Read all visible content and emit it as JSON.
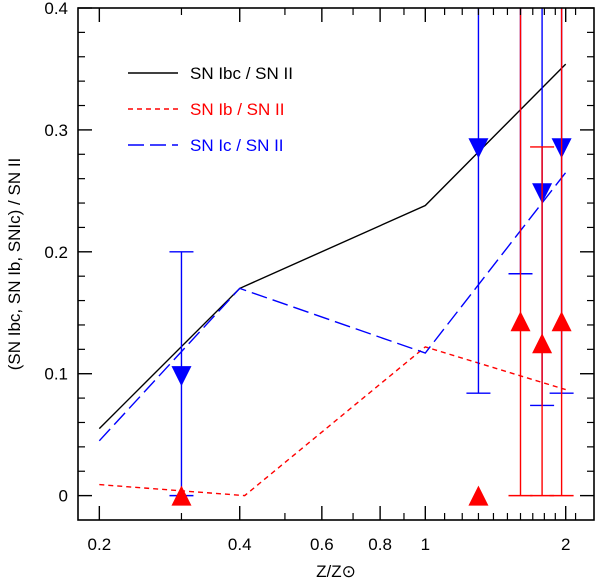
{
  "chart_data": {
    "type": "line",
    "title": "",
    "xlabel": "Z/Z⊙",
    "ylabel": "(SN Ibc, SN Ib, SNIc) / SN II",
    "x_scale": "log",
    "xlim": [
      0.18,
      2.3
    ],
    "ylim": [
      -0.02,
      0.4
    ],
    "x_ticks": [
      {
        "value": 0.2,
        "label": "0.2"
      },
      {
        "value": 0.4,
        "label": "0.4"
      },
      {
        "value": 0.6,
        "label": "0.6"
      },
      {
        "value": 0.8,
        "label": "0.8"
      },
      {
        "value": 1,
        "label": "1"
      },
      {
        "value": 2,
        "label": "2"
      }
    ],
    "y_ticks": [
      {
        "value": 0,
        "label": "0"
      },
      {
        "value": 0.1,
        "label": "0.1"
      },
      {
        "value": 0.2,
        "label": "0.2"
      },
      {
        "value": 0.3,
        "label": "0.3"
      },
      {
        "value": 0.4,
        "label": "0.4"
      }
    ],
    "legend_position": "top-left",
    "series": [
      {
        "name": "SN Ibc / SN II",
        "color": "#000000",
        "style": "solid",
        "x": [
          0.2,
          0.4,
          1.0,
          2.0
        ],
        "y": [
          0.055,
          0.17,
          0.238,
          0.354
        ]
      },
      {
        "name": "SN Ib / SN II",
        "color": "#ff0000",
        "style": "dotted",
        "x": [
          0.2,
          0.41,
          1.0,
          2.0
        ],
        "y": [
          0.009,
          0.0,
          0.122,
          0.087
        ]
      },
      {
        "name": "SN Ic / SN II",
        "color": "#0000ff",
        "style": "dashed",
        "x": [
          0.2,
          0.4,
          1.0,
          2.0
        ],
        "y": [
          0.045,
          0.17,
          0.117,
          0.265
        ]
      }
    ],
    "points": [
      {
        "series": "SN Ic / SN II",
        "marker": "down-triangle",
        "color": "#0000ff",
        "x": 0.3,
        "y": 0.098,
        "lo": 0.0,
        "hi": 0.2
      },
      {
        "series": "SN Ic / SN II",
        "marker": "down-triangle",
        "color": "#0000ff",
        "x": 1.3,
        "y": 0.285,
        "lo": 0.084,
        "hi": 0.4
      },
      {
        "series": "SN Ic / SN II",
        "marker": "down-triangle",
        "color": "#0000ff",
        "x": 1.78,
        "y": 0.248,
        "lo": 0.074,
        "hi": 0.4
      },
      {
        "series": "SN Ic / SN II",
        "marker": "down-triangle",
        "color": "#0000ff",
        "x": 1.96,
        "y": 0.285,
        "lo": 0.084,
        "hi": 0.4
      },
      {
        "series": "SN Ic / SN II",
        "marker": "none",
        "color": "#0000ff",
        "x": 1.6,
        "y": null,
        "lo": 0.182,
        "hi": 0.4
      },
      {
        "series": "SN Ib / SN II",
        "marker": "up-triangle",
        "color": "#ff0000",
        "x": 0.3,
        "y": 0.0,
        "lo": null,
        "hi": null
      },
      {
        "series": "SN Ib / SN II",
        "marker": "up-triangle",
        "color": "#ff0000",
        "x": 1.3,
        "y": 0.0,
        "lo": null,
        "hi": null
      },
      {
        "series": "SN Ib / SN II",
        "marker": "up-triangle",
        "color": "#ff0000",
        "x": 1.6,
        "y": 0.143,
        "lo": 0.0,
        "hi": 0.4
      },
      {
        "series": "SN Ib / SN II",
        "marker": "up-triangle",
        "color": "#ff0000",
        "x": 1.78,
        "y": 0.125,
        "lo": 0.0,
        "hi": 0.286
      },
      {
        "series": "SN Ib / SN II",
        "marker": "up-triangle",
        "color": "#ff0000",
        "x": 1.96,
        "y": 0.143,
        "lo": 0.0,
        "hi": 0.4
      }
    ]
  }
}
